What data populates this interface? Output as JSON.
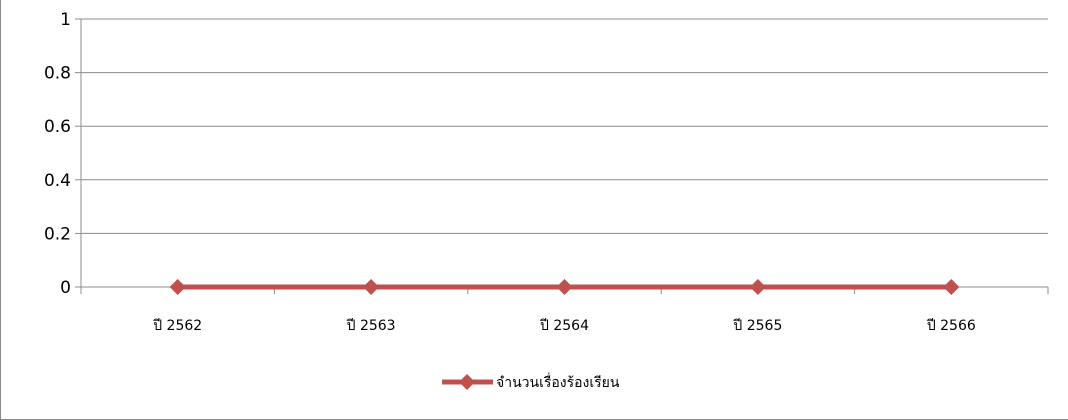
{
  "chart_data": {
    "type": "line",
    "categories": [
      "ปี 2562",
      "ปี 2563",
      "ปี 2564",
      "ปี 2565",
      "ปี 2566"
    ],
    "series": [
      {
        "name": "จำนวนเรื่องร้องเรียน",
        "values": [
          0,
          0,
          0,
          0,
          0
        ],
        "color": "#c0504d"
      }
    ],
    "yticks": [
      "0",
      "0.2",
      "0.4",
      "0.6",
      "0.8",
      "1"
    ],
    "ylim": [
      0,
      1
    ],
    "grid": true,
    "legend_position": "bottom"
  }
}
